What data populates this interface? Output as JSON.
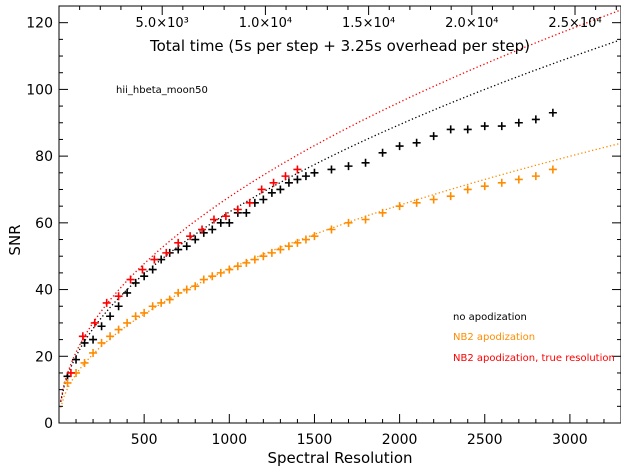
{
  "chart_data": {
    "type": "scatter",
    "title": "",
    "annotation": "hii_hbeta_moon50",
    "xlabel": "Spectral Resolution",
    "ylabel": "SNR",
    "xlim": [
      0,
      3300
    ],
    "ylim": [
      0,
      125
    ],
    "x_ticks": [
      500,
      1000,
      1500,
      2000,
      2500,
      3000
    ],
    "y_ticks": [
      0,
      20,
      40,
      60,
      80,
      100,
      120
    ],
    "top_axis": {
      "label": "Total time (5s per step + 3.25s overhead per step)",
      "tick_labels": [
        {
          "text": "5.0×10³",
          "x": 606
        },
        {
          "text": "1.0×10⁴",
          "x": 1212
        },
        {
          "text": "1.5×10⁴",
          "x": 1818
        },
        {
          "text": "2.0×10⁴",
          "x": 2424
        },
        {
          "text": "2.5×10⁴",
          "x": 3030
        }
      ]
    },
    "legend_position": "bottom-right",
    "series": [
      {
        "name": "no apodization",
        "color": "#000000",
        "marker": "plus",
        "x": [
          50,
          100,
          150,
          200,
          250,
          300,
          350,
          400,
          450,
          500,
          550,
          600,
          650,
          700,
          750,
          800,
          850,
          900,
          950,
          1000,
          1050,
          1100,
          1150,
          1200,
          1250,
          1300,
          1350,
          1400,
          1450,
          1500,
          1600,
          1700,
          1800,
          1900,
          2000,
          2100,
          2200,
          2300,
          2400,
          2500,
          2600,
          2700,
          2800,
          2900
        ],
        "y": [
          14,
          19,
          24,
          25,
          29,
          32,
          35,
          39,
          42,
          44,
          46,
          49,
          51,
          52,
          53,
          55,
          57,
          58,
          60,
          60,
          63,
          63,
          66,
          67,
          69,
          70,
          72,
          73,
          74,
          75,
          76,
          77,
          78,
          81,
          83,
          84,
          86,
          88,
          88,
          89,
          89,
          90,
          91,
          93
        ],
        "fit": {
          "a": 2.0,
          "p": 0.5
        }
      },
      {
        "name": "NB2 apodization",
        "color": "#ff8c00",
        "marker": "plus",
        "x": [
          50,
          100,
          150,
          200,
          250,
          300,
          350,
          400,
          450,
          500,
          550,
          600,
          650,
          700,
          750,
          800,
          850,
          900,
          950,
          1000,
          1050,
          1100,
          1150,
          1200,
          1250,
          1300,
          1350,
          1400,
          1450,
          1500,
          1600,
          1700,
          1800,
          1900,
          2000,
          2100,
          2200,
          2300,
          2400,
          2500,
          2600,
          2700,
          2800,
          2900
        ],
        "y": [
          12,
          15,
          18,
          21,
          24,
          26,
          28,
          30,
          32,
          33,
          35,
          36,
          37,
          39,
          40,
          41,
          43,
          44,
          45,
          46,
          47,
          48,
          49,
          50,
          51,
          52,
          53,
          54,
          55,
          56,
          58,
          60,
          61,
          63,
          65,
          66,
          67,
          68,
          70,
          71,
          72,
          73,
          74,
          76
        ],
        "fit": {
          "a": 1.46,
          "p": 0.5
        }
      },
      {
        "name": "NB2 apodization, true resolution",
        "color": "#ff0000",
        "marker": "plus",
        "x": [
          70,
          140,
          210,
          280,
          350,
          420,
          490,
          560,
          630,
          700,
          770,
          840,
          910,
          980,
          1050,
          1120,
          1190,
          1260,
          1330,
          1400
        ],
        "y": [
          15,
          26,
          30,
          36,
          38,
          43,
          46,
          49,
          51,
          54,
          56,
          58,
          61,
          62,
          64,
          66,
          70,
          72,
          74,
          76
        ],
        "fit": {
          "a": 2.07,
          "p": 0.505
        }
      }
    ]
  }
}
